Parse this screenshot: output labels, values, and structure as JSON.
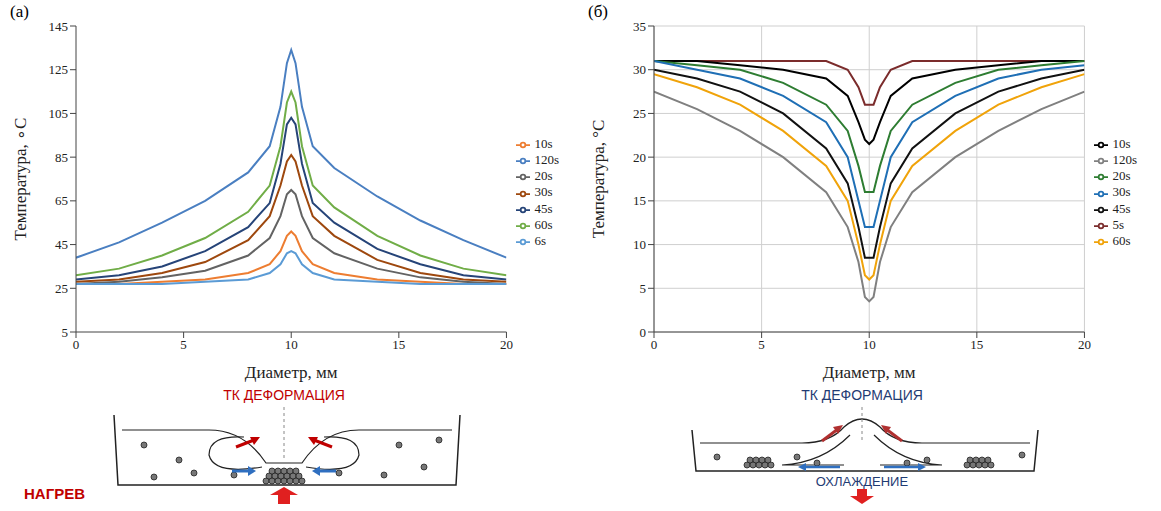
{
  "chart_data": [
    {
      "type": "line",
      "title": "(a)",
      "x_label": "Диаметр, мм",
      "y_label": "Температура, ∘C",
      "x": [
        0,
        2,
        4,
        6,
        8,
        9,
        9.5,
        9.8,
        10,
        10.2,
        10.5,
        11,
        12,
        14,
        16,
        18,
        20
      ],
      "xlim": [
        0,
        20
      ],
      "xticks": [
        0,
        5,
        10,
        15,
        20
      ],
      "ylim": [
        5,
        145
      ],
      "yticks": [
        5,
        25,
        45,
        65,
        85,
        105,
        125,
        145
      ],
      "grid": false,
      "legend": "right",
      "annotations": [
        "ТК ДЕФОРМАЦИЯ",
        "НАГРЕВ"
      ],
      "series": [
        {
          "name": "120s",
          "color": "#4a7fc1",
          "values": [
            39,
            46,
            55,
            65,
            78,
            90,
            108,
            128,
            134,
            128,
            108,
            90,
            80,
            67,
            56,
            47,
            39
          ]
        },
        {
          "name": "60s",
          "color": "#70ad47",
          "values": [
            31,
            34,
            40,
            48,
            60,
            72,
            90,
            110,
            115,
            110,
            90,
            72,
            62,
            49,
            40,
            34,
            31
          ]
        },
        {
          "name": "45s",
          "color": "#264478",
          "values": [
            29,
            31,
            35,
            42,
            53,
            64,
            82,
            100,
            103,
            100,
            82,
            64,
            55,
            43,
            36,
            31,
            29
          ]
        },
        {
          "name": "30s",
          "color": "#9e480e",
          "values": [
            28,
            29,
            32,
            37,
            47,
            58,
            72,
            83,
            86,
            83,
            72,
            58,
            49,
            38,
            32,
            29,
            28
          ]
        },
        {
          "name": "20s",
          "color": "#636363",
          "values": [
            27,
            28,
            30,
            33,
            40,
            48,
            58,
            68,
            70,
            68,
            58,
            48,
            41,
            34,
            30,
            28,
            27
          ]
        },
        {
          "name": "10s",
          "color": "#ed7d31",
          "values": [
            27,
            27,
            28,
            29,
            32,
            36,
            42,
            49,
            51,
            49,
            42,
            36,
            32,
            29,
            28,
            27,
            27
          ]
        },
        {
          "name": "6s",
          "color": "#5b9bd5",
          "values": [
            27,
            27,
            27,
            28,
            29,
            32,
            36,
            41,
            42,
            41,
            36,
            32,
            29,
            28,
            27,
            27,
            27
          ]
        }
      ]
    },
    {
      "type": "line",
      "title": "(б)",
      "x_label": "Диаметр, мм",
      "y_label": "Температура, °C",
      "x": [
        0,
        2,
        4,
        6,
        8,
        9,
        9.5,
        9.8,
        10,
        10.2,
        10.5,
        11,
        12,
        14,
        16,
        18,
        20
      ],
      "xlim": [
        0,
        20
      ],
      "xticks": [
        0,
        5,
        10,
        15,
        20
      ],
      "ylim": [
        0,
        35
      ],
      "yticks": [
        0,
        5,
        10,
        15,
        20,
        25,
        30,
        35
      ],
      "grid": true,
      "legend": "right",
      "annotations": [
        "ТК ДЕФОРМАЦИЯ",
        "ОХЛАЖДЕНИЕ"
      ],
      "series": [
        {
          "name": "5s",
          "color": "#7b2c2c",
          "values": [
            31,
            31,
            31,
            31,
            31,
            30,
            28,
            26,
            26,
            26,
            28,
            30,
            31,
            31,
            31,
            31,
            31
          ]
        },
        {
          "name": "10s",
          "color": "#000000",
          "values": [
            31,
            31,
            30.5,
            30,
            29,
            27,
            24,
            22,
            21.5,
            22,
            24,
            27,
            29,
            30,
            30.5,
            31,
            31
          ]
        },
        {
          "name": "20s",
          "color": "#2e7d32",
          "values": [
            31,
            30.5,
            30,
            28.5,
            26,
            23,
            19,
            16,
            16,
            16,
            19,
            23,
            26,
            28.5,
            30,
            30.5,
            31
          ]
        },
        {
          "name": "30s",
          "color": "#1f6fb5",
          "values": [
            31,
            30,
            29,
            27,
            24,
            20,
            15,
            12,
            12,
            12,
            15,
            20,
            24,
            27,
            29,
            30,
            30.5
          ]
        },
        {
          "name": "45s",
          "color": "#111111",
          "values": [
            30,
            29,
            27.5,
            25,
            21,
            17,
            12,
            8.5,
            8.5,
            8.5,
            12,
            17,
            21,
            25,
            27.5,
            29,
            30
          ]
        },
        {
          "name": "60s",
          "color": "#f0a30a",
          "values": [
            29.5,
            28,
            26,
            23,
            19,
            15,
            10,
            6.5,
            6,
            6.5,
            10,
            15,
            19,
            23,
            26,
            28,
            29.5
          ]
        },
        {
          "name": "120s",
          "color": "#808080",
          "values": [
            27.5,
            25.5,
            23,
            20,
            16,
            12,
            8,
            4,
            3.5,
            4,
            8,
            12,
            16,
            20,
            23,
            25.5,
            27.5
          ]
        }
      ]
    }
  ]
}
